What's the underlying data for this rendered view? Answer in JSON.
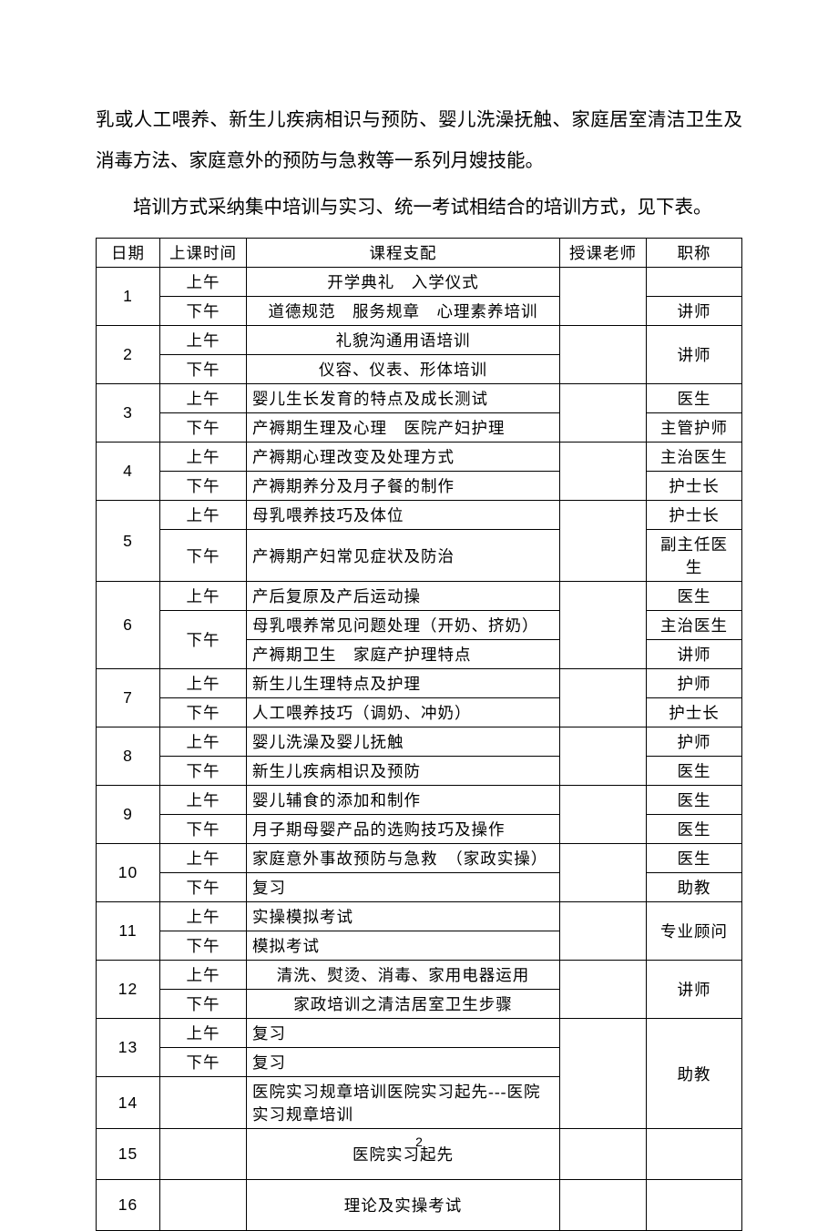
{
  "paragraphs": {
    "p1": "乳或人工喂养、新生儿疾病相识与预防、婴儿洗澡抚触、家庭居室清洁卫生及消毒方法、家庭意外的预防与急救等一系列月嫂技能。",
    "p2": "培训方式采纳集中培训与实习、统一考试相结合的培训方式，见下表。"
  },
  "headers": {
    "date": "日期",
    "time": "上课时间",
    "course": "课程支配",
    "teacher": "授课老师",
    "title": "职称"
  },
  "rows": [
    {
      "date": "1",
      "sessions": [
        {
          "time": "上午",
          "course": "开学典礼　入学仪式",
          "align": "center",
          "title": ""
        },
        {
          "time": "下午",
          "course": "道德规范　服务规章　心理素养培训",
          "align": "center",
          "title": "讲师"
        }
      ],
      "teacher": ""
    },
    {
      "date": "2",
      "sessions": [
        {
          "time": "上午",
          "course": "礼貌沟通用语培训",
          "align": "center"
        },
        {
          "time": "下午",
          "course": "仪容、仪表、形体培训",
          "align": "center"
        }
      ],
      "teacher": "",
      "title": "讲师",
      "title_rowspan": true
    },
    {
      "date": "3",
      "sessions": [
        {
          "time": "上午",
          "course": "婴儿生长发育的特点及成长测试",
          "title": "医生"
        },
        {
          "time": "下午",
          "course": "产褥期生理及心理　医院产妇护理",
          "title": "主管护师"
        }
      ],
      "teacher": ""
    },
    {
      "date": "4",
      "sessions": [
        {
          "time": "上午",
          "course": "产褥期心理改变及处理方式",
          "title": "主治医生"
        },
        {
          "time": "下午",
          "course": "产褥期养分及月子餐的制作",
          "title": "护士长"
        }
      ],
      "teacher": ""
    },
    {
      "date": "5",
      "sessions": [
        {
          "time": "上午",
          "course": "母乳喂养技巧及体位",
          "title": "护士长"
        },
        {
          "time": "下午",
          "course": "产褥期产妇常见症状及防治",
          "title": "副主任医生"
        }
      ],
      "teacher": ""
    },
    {
      "date": "6",
      "sessions_special": [
        {
          "time": "上午",
          "time_rowspan": 1,
          "course": "产后复原及产后运动操",
          "title": "医生"
        },
        {
          "time": "下午",
          "time_rowspan": 2,
          "course": "母乳喂养常见问题处理（开奶、挤奶）",
          "title": "主治医生"
        },
        {
          "course": "产褥期卫生　家庭产护理特点",
          "title": "讲师"
        }
      ],
      "teacher": "",
      "date_rowspan": 3
    },
    {
      "date": "7",
      "sessions": [
        {
          "time": "上午",
          "course": "新生儿生理特点及护理",
          "title": "护师"
        },
        {
          "time": "下午",
          "course": "人工喂养技巧（调奶、冲奶）",
          "title": "护士长"
        }
      ],
      "teacher": ""
    },
    {
      "date": "8",
      "sessions": [
        {
          "time": "上午",
          "course": "婴儿洗澡及婴儿抚触",
          "title": "护师"
        },
        {
          "time": "下午",
          "course": "新生儿疾病相识及预防",
          "title": "医生"
        }
      ],
      "teacher": ""
    },
    {
      "date": "9",
      "sessions": [
        {
          "time": "上午",
          "course": "婴儿辅食的添加和制作",
          "title": "医生"
        },
        {
          "time": "下午",
          "course": "月子期母婴产品的选购技巧及操作",
          "title": "医生"
        }
      ],
      "teacher": ""
    },
    {
      "date": "10",
      "sessions": [
        {
          "time": "上午",
          "course": "家庭意外事故预防与急救　（家政实操）",
          "title": "医生"
        },
        {
          "time": "下午",
          "course": "复习",
          "title": "助教"
        }
      ],
      "teacher": ""
    },
    {
      "date": "11",
      "sessions": [
        {
          "time": "上午",
          "course": "实操模拟考试"
        },
        {
          "time": "下午",
          "course": "模拟考试"
        }
      ],
      "teacher": "",
      "title": "专业顾问",
      "title_rowspan": true
    },
    {
      "date": "12",
      "sessions": [
        {
          "time": "上午",
          "course": "清洗、熨烫、消毒、家用电器运用",
          "align": "center"
        },
        {
          "time": "下午",
          "course": "家政培训之清洁居室卫生步骤",
          "align": "center"
        }
      ],
      "teacher": "",
      "title": "讲师",
      "title_rowspan": true
    },
    {
      "date": "13",
      "sessions": [
        {
          "time": "上午",
          "course": "复习"
        },
        {
          "time": "下午",
          "course": "复习"
        }
      ],
      "teacher": ""
    },
    {
      "date": "14",
      "single": {
        "time": "",
        "course": "医院实习规章培训医院实习起先---医院实习规章培训"
      },
      "teacher": ""
    },
    {
      "date": "15",
      "single": {
        "time": "",
        "course": "医院实习起先",
        "align": "center"
      },
      "teacher": "",
      "tall": true
    },
    {
      "date": "16",
      "single": {
        "time": "",
        "course": "理论及实操考试",
        "align": "center"
      },
      "teacher": "",
      "tall": true
    }
  ],
  "title_13_14": "助教",
  "page_number": "2"
}
